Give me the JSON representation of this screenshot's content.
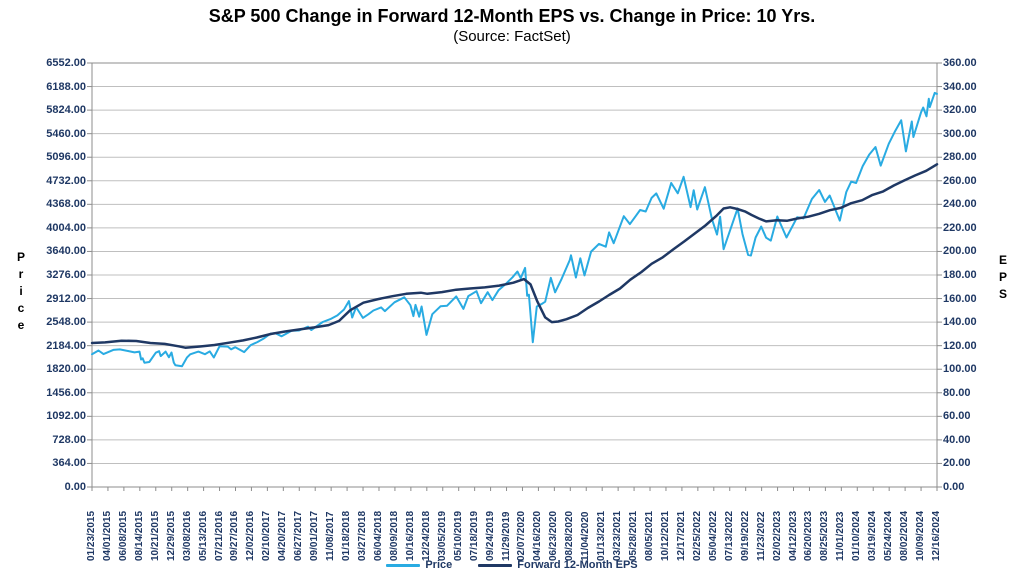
{
  "title": "S&P 500 Change in Forward 12-Month EPS vs. Change in Price: 10 Yrs.",
  "subtitle": "(Source: FactSet)",
  "colors": {
    "price_line": "#29ABE2",
    "eps_line": "#1F3864",
    "gridline": "#BFBFBF",
    "axis_border": "#8C8C8C",
    "tick_label": "#1F3864",
    "title_text": "#000000"
  },
  "left_axis": {
    "title": "Price",
    "ticks": [
      "6552.00",
      "6188.00",
      "5824.00",
      "5460.00",
      "5096.00",
      "4732.00",
      "4368.00",
      "4004.00",
      "3640.00",
      "3276.00",
      "2912.00",
      "2548.00",
      "2184.00",
      "1820.00",
      "1456.00",
      "1092.00",
      "728.00",
      "364.00",
      "0.00"
    ]
  },
  "right_axis": {
    "title": "EPS",
    "ticks": [
      "360.00",
      "340.00",
      "320.00",
      "300.00",
      "280.00",
      "260.00",
      "240.00",
      "220.00",
      "200.00",
      "180.00",
      "160.00",
      "140.00",
      "120.00",
      "100.00",
      "80.00",
      "60.00",
      "40.00",
      "20.00",
      "0.00"
    ]
  },
  "x_axis": {
    "labels": [
      "01/23/2015",
      "04/01/2015",
      "06/08/2015",
      "08/14/2015",
      "10/21/2015",
      "12/29/2015",
      "03/08/2016",
      "05/13/2016",
      "07/21/2016",
      "09/27/2016",
      "12/02/2016",
      "02/10/2017",
      "04/20/2017",
      "06/27/2017",
      "09/01/2017",
      "11/08/2017",
      "01/18/2018",
      "03/27/2018",
      "06/04/2018",
      "08/09/2018",
      "10/16/2018",
      "12/24/2018",
      "03/05/2019",
      "05/10/2019",
      "07/18/2019",
      "09/24/2019",
      "11/29/2019",
      "02/07/2020",
      "04/16/2020",
      "06/23/2020",
      "08/28/2020",
      "11/04/2020",
      "01/13/2021",
      "03/23/2021",
      "05/28/2021",
      "08/05/2021",
      "10/12/2021",
      "12/17/2021",
      "02/25/2022",
      "05/04/2022",
      "07/13/2022",
      "09/19/2022",
      "11/23/2022",
      "02/02/2023",
      "04/12/2023",
      "06/20/2023",
      "08/25/2023",
      "11/01/2023",
      "01/10/2024",
      "03/19/2024",
      "05/24/2024",
      "08/02/2024",
      "10/09/2024",
      "12/16/2024"
    ]
  },
  "legend": {
    "price_label": "Price",
    "eps_label": "Forward 12-Month EPS"
  },
  "chart_data": {
    "type": "line",
    "title": "S&P 500 Change in Forward 12-Month EPS vs. Change in Price: 10 Yrs.",
    "subtitle": "(Source: FactSet)",
    "x_range": [
      "2015-01-23",
      "2024-12-16"
    ],
    "left_ylim": [
      0,
      6552
    ],
    "right_ylim": [
      0,
      360
    ],
    "grid": "horizontal-only",
    "legend_position": "bottom-center",
    "series": [
      {
        "name": "Price",
        "axis": "left",
        "color": "#29ABE2",
        "width": 2,
        "points": [
          [
            "2015-01-23",
            2052
          ],
          [
            "2015-02-20",
            2110
          ],
          [
            "2015-03-13",
            2053
          ],
          [
            "2015-04-24",
            2118
          ],
          [
            "2015-05-22",
            2126
          ],
          [
            "2015-06-26",
            2101
          ],
          [
            "2015-07-24",
            2080
          ],
          [
            "2015-08-14",
            2092
          ],
          [
            "2015-08-21",
            1971
          ],
          [
            "2015-08-28",
            1989
          ],
          [
            "2015-09-04",
            1921
          ],
          [
            "2015-09-25",
            1931
          ],
          [
            "2015-10-23",
            2075
          ],
          [
            "2015-11-06",
            2099
          ],
          [
            "2015-11-13",
            2023
          ],
          [
            "2015-12-04",
            2092
          ],
          [
            "2015-12-18",
            2005
          ],
          [
            "2015-12-29",
            2078
          ],
          [
            "2016-01-08",
            1922
          ],
          [
            "2016-01-15",
            1880
          ],
          [
            "2016-02-12",
            1865
          ],
          [
            "2016-03-04",
            2000
          ],
          [
            "2016-03-18",
            2050
          ],
          [
            "2016-04-22",
            2092
          ],
          [
            "2016-05-20",
            2052
          ],
          [
            "2016-06-10",
            2096
          ],
          [
            "2016-06-27",
            2001
          ],
          [
            "2016-07-22",
            2175
          ],
          [
            "2016-08-26",
            2169
          ],
          [
            "2016-09-09",
            2128
          ],
          [
            "2016-09-27",
            2160
          ],
          [
            "2016-11-04",
            2085
          ],
          [
            "2016-12-02",
            2192
          ],
          [
            "2016-12-30",
            2239
          ],
          [
            "2017-01-27",
            2295
          ],
          [
            "2017-02-24",
            2367
          ],
          [
            "2017-03-17",
            2378
          ],
          [
            "2017-04-13",
            2329
          ],
          [
            "2017-05-26",
            2416
          ],
          [
            "2017-06-27",
            2419
          ],
          [
            "2017-08-04",
            2477
          ],
          [
            "2017-08-18",
            2426
          ],
          [
            "2017-10-06",
            2549
          ],
          [
            "2017-11-08",
            2594
          ],
          [
            "2017-12-08",
            2652
          ],
          [
            "2018-01-05",
            2743
          ],
          [
            "2018-01-26",
            2873
          ],
          [
            "2018-02-09",
            2620
          ],
          [
            "2018-02-26",
            2780
          ],
          [
            "2018-03-27",
            2613
          ],
          [
            "2018-04-20",
            2670
          ],
          [
            "2018-05-11",
            2728
          ],
          [
            "2018-06-13",
            2776
          ],
          [
            "2018-06-29",
            2718
          ],
          [
            "2018-08-09",
            2854
          ],
          [
            "2018-09-20",
            2931
          ],
          [
            "2018-10-16",
            2810
          ],
          [
            "2018-10-29",
            2641
          ],
          [
            "2018-11-07",
            2814
          ],
          [
            "2018-11-23",
            2632
          ],
          [
            "2018-12-03",
            2790
          ],
          [
            "2018-12-24",
            2351
          ],
          [
            "2019-01-18",
            2671
          ],
          [
            "2019-02-22",
            2793
          ],
          [
            "2019-03-22",
            2801
          ],
          [
            "2019-04-30",
            2946
          ],
          [
            "2019-05-31",
            2752
          ],
          [
            "2019-06-21",
            2950
          ],
          [
            "2019-07-26",
            3026
          ],
          [
            "2019-08-14",
            2841
          ],
          [
            "2019-09-12",
            3010
          ],
          [
            "2019-10-02",
            2888
          ],
          [
            "2019-10-28",
            3039
          ],
          [
            "2019-11-29",
            3141
          ],
          [
            "2019-12-27",
            3240
          ],
          [
            "2020-01-17",
            3330
          ],
          [
            "2020-01-31",
            3226
          ],
          [
            "2020-02-19",
            3386
          ],
          [
            "2020-02-28",
            2954
          ],
          [
            "2020-03-06",
            2972
          ],
          [
            "2020-03-23",
            2237
          ],
          [
            "2020-04-09",
            2790
          ],
          [
            "2020-05-01",
            2831
          ],
          [
            "2020-05-15",
            2864
          ],
          [
            "2020-06-08",
            3232
          ],
          [
            "2020-06-26",
            3009
          ],
          [
            "2020-07-24",
            3216
          ],
          [
            "2020-08-28",
            3508
          ],
          [
            "2020-09-02",
            3580
          ],
          [
            "2020-09-23",
            3237
          ],
          [
            "2020-10-12",
            3534
          ],
          [
            "2020-10-30",
            3270
          ],
          [
            "2020-11-27",
            3638
          ],
          [
            "2020-12-31",
            3756
          ],
          [
            "2021-01-29",
            3714
          ],
          [
            "2021-02-12",
            3935
          ],
          [
            "2021-03-04",
            3768
          ],
          [
            "2021-04-16",
            4185
          ],
          [
            "2021-05-12",
            4063
          ],
          [
            "2021-06-25",
            4281
          ],
          [
            "2021-07-19",
            4258
          ],
          [
            "2021-08-13",
            4468
          ],
          [
            "2021-09-02",
            4537
          ],
          [
            "2021-10-04",
            4300
          ],
          [
            "2021-11-05",
            4698
          ],
          [
            "2021-12-03",
            4538
          ],
          [
            "2021-12-28",
            4793
          ],
          [
            "2022-01-27",
            4326
          ],
          [
            "2022-02-09",
            4587
          ],
          [
            "2022-02-24",
            4288
          ],
          [
            "2022-03-29",
            4632
          ],
          [
            "2022-04-29",
            4132
          ],
          [
            "2022-05-20",
            3901
          ],
          [
            "2022-06-02",
            4177
          ],
          [
            "2022-06-17",
            3675
          ],
          [
            "2022-08-16",
            4305
          ],
          [
            "2022-09-06",
            3908
          ],
          [
            "2022-09-30",
            3586
          ],
          [
            "2022-10-12",
            3577
          ],
          [
            "2022-11-01",
            3856
          ],
          [
            "2022-11-25",
            4026
          ],
          [
            "2022-12-16",
            3852
          ],
          [
            "2023-01-05",
            3808
          ],
          [
            "2023-02-02",
            4180
          ],
          [
            "2023-03-13",
            3856
          ],
          [
            "2023-04-28",
            4169
          ],
          [
            "2023-05-25",
            4151
          ],
          [
            "2023-06-30",
            4450
          ],
          [
            "2023-07-31",
            4589
          ],
          [
            "2023-08-25",
            4406
          ],
          [
            "2023-09-14",
            4505
          ],
          [
            "2023-10-27",
            4117
          ],
          [
            "2023-11-24",
            4559
          ],
          [
            "2023-12-15",
            4719
          ],
          [
            "2024-01-05",
            4697
          ],
          [
            "2024-02-02",
            4959
          ],
          [
            "2024-03-01",
            5137
          ],
          [
            "2024-03-28",
            5254
          ],
          [
            "2024-04-19",
            4967
          ],
          [
            "2024-05-24",
            5305
          ],
          [
            "2024-06-18",
            5487
          ],
          [
            "2024-07-16",
            5667
          ],
          [
            "2024-08-05",
            5186
          ],
          [
            "2024-08-30",
            5648
          ],
          [
            "2024-09-06",
            5408
          ],
          [
            "2024-10-09",
            5792
          ],
          [
            "2024-10-18",
            5865
          ],
          [
            "2024-11-01",
            5729
          ],
          [
            "2024-11-11",
            6001
          ],
          [
            "2024-11-15",
            5871
          ],
          [
            "2024-12-06",
            6090
          ],
          [
            "2024-12-16",
            6074
          ]
        ]
      },
      {
        "name": "Forward 12-Month EPS",
        "axis": "right",
        "color": "#1F3864",
        "width": 2.5,
        "points": [
          [
            "2015-01-23",
            122.3
          ],
          [
            "2015-03-20",
            122.8
          ],
          [
            "2015-05-29",
            124.2
          ],
          [
            "2015-07-31",
            124.0
          ],
          [
            "2015-09-30",
            122.3
          ],
          [
            "2015-11-30",
            121.5
          ],
          [
            "2016-01-29",
            119.5
          ],
          [
            "2016-02-26",
            118.3
          ],
          [
            "2016-04-29",
            119.3
          ],
          [
            "2016-06-30",
            120.6
          ],
          [
            "2016-08-31",
            122.5
          ],
          [
            "2016-10-31",
            124.5
          ],
          [
            "2016-12-30",
            127.0
          ],
          [
            "2017-02-28",
            130.0
          ],
          [
            "2017-04-28",
            132.0
          ],
          [
            "2017-06-30",
            133.8
          ],
          [
            "2017-08-31",
            135.5
          ],
          [
            "2017-10-31",
            137.5
          ],
          [
            "2017-12-15",
            141.0
          ],
          [
            "2018-01-31",
            150.0
          ],
          [
            "2018-03-29",
            156.5
          ],
          [
            "2018-05-31",
            159.5
          ],
          [
            "2018-07-31",
            162.0
          ],
          [
            "2018-09-28",
            164.0
          ],
          [
            "2018-11-30",
            165.0
          ],
          [
            "2018-12-28",
            164.0
          ],
          [
            "2019-02-28",
            165.5
          ],
          [
            "2019-04-30",
            167.5
          ],
          [
            "2019-06-28",
            168.5
          ],
          [
            "2019-08-30",
            169.5
          ],
          [
            "2019-10-31",
            171.0
          ],
          [
            "2019-12-31",
            173.5
          ],
          [
            "2020-02-14",
            176.5
          ],
          [
            "2020-03-13",
            172.0
          ],
          [
            "2020-04-10",
            158.0
          ],
          [
            "2020-05-15",
            144.0
          ],
          [
            "2020-06-12",
            140.0
          ],
          [
            "2020-07-10",
            140.5
          ],
          [
            "2020-08-14",
            142.5
          ],
          [
            "2020-09-30",
            146.0
          ],
          [
            "2020-11-13",
            152.0
          ],
          [
            "2020-12-31",
            157.5
          ],
          [
            "2021-02-12",
            163.0
          ],
          [
            "2021-03-31",
            168.5
          ],
          [
            "2021-05-14",
            176.0
          ],
          [
            "2021-06-30",
            182.5
          ],
          [
            "2021-08-13",
            189.5
          ],
          [
            "2021-09-30",
            195.0
          ],
          [
            "2021-11-15",
            202.0
          ],
          [
            "2021-12-31",
            208.5
          ],
          [
            "2022-02-15",
            215.5
          ],
          [
            "2022-03-31",
            222.0
          ],
          [
            "2022-05-16",
            230.0
          ],
          [
            "2022-06-17",
            236.5
          ],
          [
            "2022-07-15",
            237.5
          ],
          [
            "2022-08-15",
            236.0
          ],
          [
            "2022-09-16",
            234.0
          ],
          [
            "2022-10-14",
            231.0
          ],
          [
            "2022-11-15",
            228.0
          ],
          [
            "2022-12-16",
            225.5
          ],
          [
            "2023-01-31",
            226.5
          ],
          [
            "2023-03-15",
            226.0
          ],
          [
            "2023-04-28",
            228.0
          ],
          [
            "2023-06-15",
            229.5
          ],
          [
            "2023-07-31",
            232.0
          ],
          [
            "2023-09-15",
            235.0
          ],
          [
            "2023-10-31",
            237.0
          ],
          [
            "2023-12-15",
            241.0
          ],
          [
            "2024-01-31",
            243.5
          ],
          [
            "2024-03-15",
            248.0
          ],
          [
            "2024-04-30",
            251.0
          ],
          [
            "2024-06-14",
            256.0
          ],
          [
            "2024-07-31",
            260.5
          ],
          [
            "2024-09-13",
            264.5
          ],
          [
            "2024-10-31",
            268.5
          ],
          [
            "2024-12-16",
            274.0
          ]
        ]
      }
    ]
  }
}
